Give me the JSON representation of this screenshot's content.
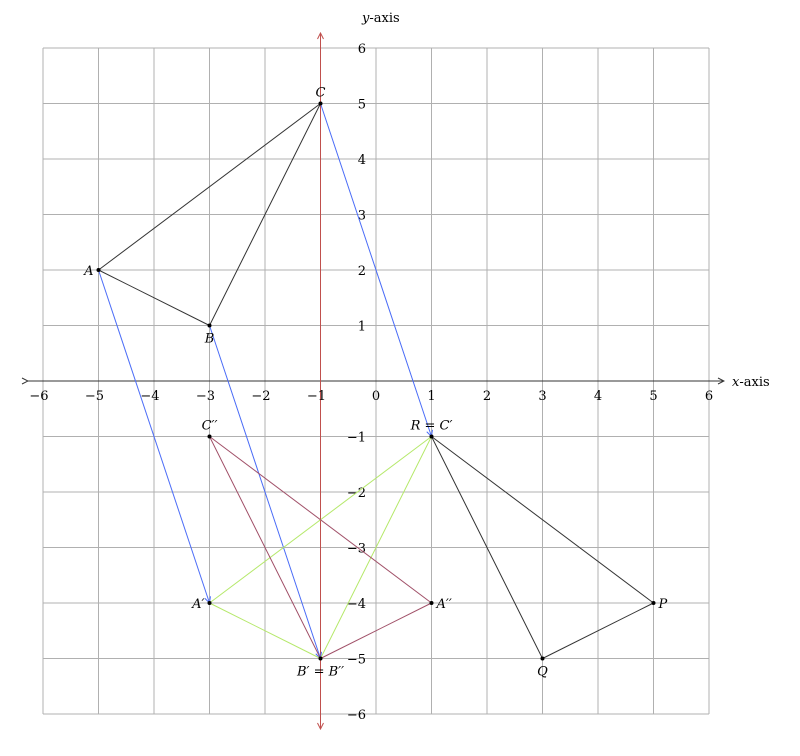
{
  "axes": {
    "x_label_var": "x",
    "x_label_suffix": "-axis",
    "y_label_var": "y",
    "y_label_suffix": "-axis",
    "xlim": [
      -6,
      6
    ],
    "ylim": [
      -6,
      6
    ],
    "x_ticks": [
      "−6",
      "−5",
      "−4",
      "−3",
      "−2",
      "−1",
      "0",
      "1",
      "2",
      "3",
      "4",
      "5",
      "6"
    ],
    "y_ticks": [
      "−6",
      "−5",
      "−4",
      "−3",
      "−2",
      "−1",
      "1",
      "2",
      "3",
      "4",
      "5",
      "6"
    ],
    "grid": true
  },
  "colors": {
    "grid": "#b0b0b0",
    "axis": "#333333",
    "mirror_line": "#c0504d",
    "triangle_abc": "#333333",
    "translation_arrows": "#4a6cf7",
    "triangle_prime": "#b5e86a",
    "triangle_double_prime": "#a05068",
    "triangle_pqr": "#333333"
  },
  "mirror_line": {
    "x": -1
  },
  "points": [
    {
      "id": "A",
      "label": "A",
      "x": -5,
      "y": 2,
      "pos": "left"
    },
    {
      "id": "B",
      "label": "B",
      "x": -3,
      "y": 1,
      "pos": "below"
    },
    {
      "id": "C",
      "label": "C",
      "x": -1,
      "y": 5,
      "pos": "above"
    },
    {
      "id": "Ap",
      "label": "A′",
      "x": -3,
      "y": -4,
      "pos": "left"
    },
    {
      "id": "Bp",
      "label": "B′ = B′′",
      "x": -1,
      "y": -5,
      "pos": "below"
    },
    {
      "id": "Cp",
      "label": "R = C′",
      "x": 1,
      "y": -1,
      "pos": "above"
    },
    {
      "id": "App",
      "label": "A′′",
      "x": 1,
      "y": -4,
      "pos": "right"
    },
    {
      "id": "Cpp",
      "label": "C′′",
      "x": -3,
      "y": -1,
      "pos": "above"
    },
    {
      "id": "P",
      "label": "P",
      "x": 5,
      "y": -4,
      "pos": "right"
    },
    {
      "id": "Q",
      "label": "Q",
      "x": 3,
      "y": -5,
      "pos": "below"
    }
  ],
  "segments": [
    {
      "from": "A",
      "to": "C",
      "color": "triangle_abc"
    },
    {
      "from": "C",
      "to": "B",
      "color": "triangle_abc"
    },
    {
      "from": "B",
      "to": "A",
      "color": "triangle_abc"
    },
    {
      "from": "A",
      "to": "Ap",
      "color": "translation_arrows",
      "arrow": true
    },
    {
      "from": "B",
      "to": "Bp",
      "color": "translation_arrows",
      "arrow": true
    },
    {
      "from": "C",
      "to": "Cp",
      "color": "translation_arrows",
      "arrow": true
    },
    {
      "from": "Ap",
      "to": "Cp",
      "color": "triangle_prime"
    },
    {
      "from": "Ap",
      "to": "Bp",
      "color": "triangle_prime"
    },
    {
      "from": "Bp",
      "to": "Cp",
      "color": "triangle_prime"
    },
    {
      "from": "Cpp",
      "to": "App",
      "color": "triangle_double_prime"
    },
    {
      "from": "Cpp",
      "to": "Bp",
      "color": "triangle_double_prime"
    },
    {
      "from": "Bp",
      "to": "App",
      "color": "triangle_double_prime"
    },
    {
      "from": "Cp",
      "to": "P",
      "color": "triangle_pqr"
    },
    {
      "from": "Cp",
      "to": "Q",
      "color": "triangle_pqr"
    },
    {
      "from": "Q",
      "to": "P",
      "color": "triangle_pqr"
    }
  ]
}
